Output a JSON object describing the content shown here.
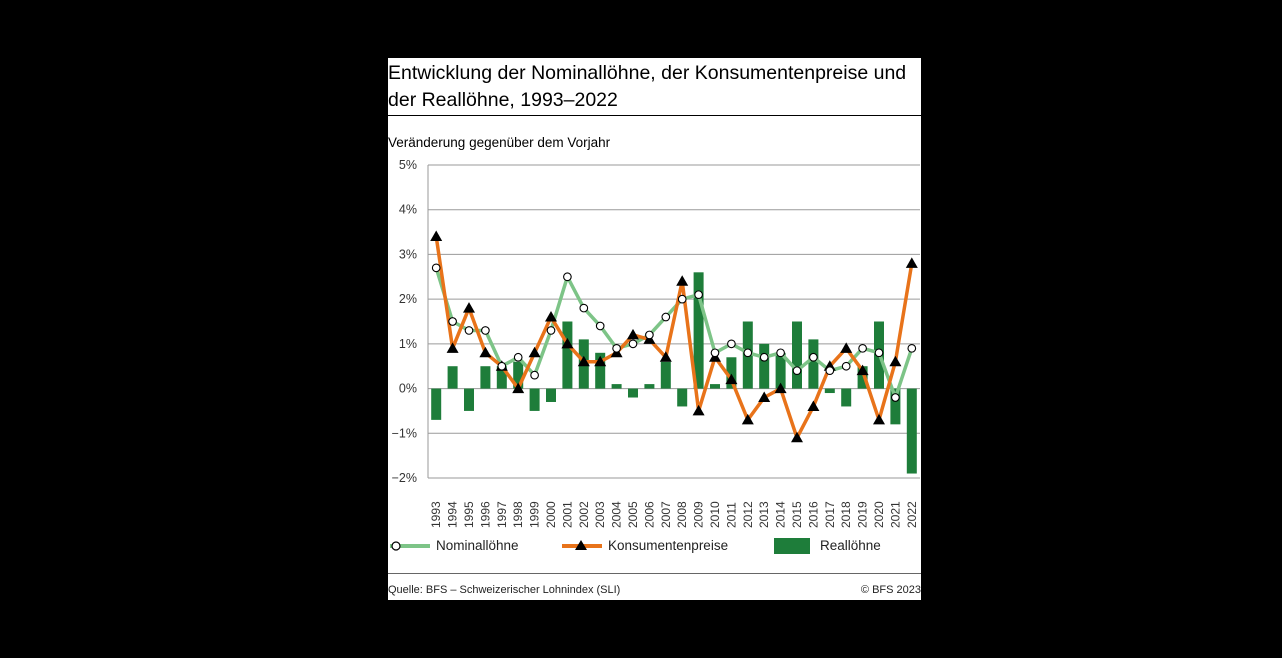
{
  "title": "Entwicklung der Nominallöhne, der Konsumentenpreise und der Reallöhne, 1993–2022",
  "subtitle": "Veränderung gegenüber dem Vorjahr",
  "source": "Quelle: BFS – Schweizerischer Lohnindex (SLI)",
  "copyright": "© BFS 2023",
  "legend": {
    "nominal": "Nominallöhne",
    "cpi": "Konsumentenpreise",
    "real": "Reallöhne"
  },
  "colors": {
    "nominal": "#7dc487",
    "cpi": "#e8731a",
    "real": "#1e7d3a",
    "grid": "#9a9a9a"
  },
  "chart_data": {
    "type": "bar+line",
    "title": "Entwicklung der Nominallöhne, der Konsumentenpreise und der Reallöhne, 1993–2022",
    "ylabel": "Veränderung gegenüber dem Vorjahr",
    "ylim": [
      -2,
      5
    ],
    "y_ticks": [
      "5%",
      "4%",
      "3%",
      "2%",
      "1%",
      "0%",
      "−1%",
      "−2%"
    ],
    "grid": true,
    "legend_position": "bottom",
    "categories": [
      "1993",
      "1994",
      "1995",
      "1996",
      "1997",
      "1998",
      "1999",
      "2000",
      "2001",
      "2002",
      "2003",
      "2004",
      "2005",
      "2006",
      "2007",
      "2008",
      "2009",
      "2010",
      "2011",
      "2012",
      "2013",
      "2014",
      "2015",
      "2016",
      "2017",
      "2018",
      "2019",
      "2020",
      "2021",
      "2022"
    ],
    "series": [
      {
        "name": "Reallöhne",
        "kind": "bar",
        "values": [
          -0.7,
          0.5,
          -0.5,
          0.5,
          0.5,
          0.6,
          -0.5,
          -0.3,
          1.5,
          1.1,
          0.8,
          0.1,
          -0.2,
          0.1,
          0.6,
          -0.4,
          2.6,
          0.1,
          0.7,
          1.5,
          1.0,
          0.8,
          1.5,
          1.1,
          -0.1,
          -0.4,
          0.5,
          1.5,
          -0.8,
          -1.9
        ]
      },
      {
        "name": "Nominallöhne",
        "kind": "line",
        "values": [
          2.7,
          1.5,
          1.3,
          1.3,
          0.5,
          0.7,
          0.3,
          1.3,
          2.5,
          1.8,
          1.4,
          0.9,
          1.0,
          1.2,
          1.6,
          2.0,
          2.1,
          0.8,
          1.0,
          0.8,
          0.7,
          0.8,
          0.4,
          0.7,
          0.4,
          0.5,
          0.9,
          0.8,
          -0.2,
          0.9
        ]
      },
      {
        "name": "Konsumentenpreise",
        "kind": "line",
        "values": [
          3.4,
          0.9,
          1.8,
          0.8,
          0.5,
          0.0,
          0.8,
          1.6,
          1.0,
          0.6,
          0.6,
          0.8,
          1.2,
          1.1,
          0.7,
          2.4,
          -0.5,
          0.7,
          0.2,
          -0.7,
          -0.2,
          0.0,
          -1.1,
          -0.4,
          0.5,
          0.9,
          0.4,
          -0.7,
          0.6,
          2.8
        ]
      }
    ]
  }
}
